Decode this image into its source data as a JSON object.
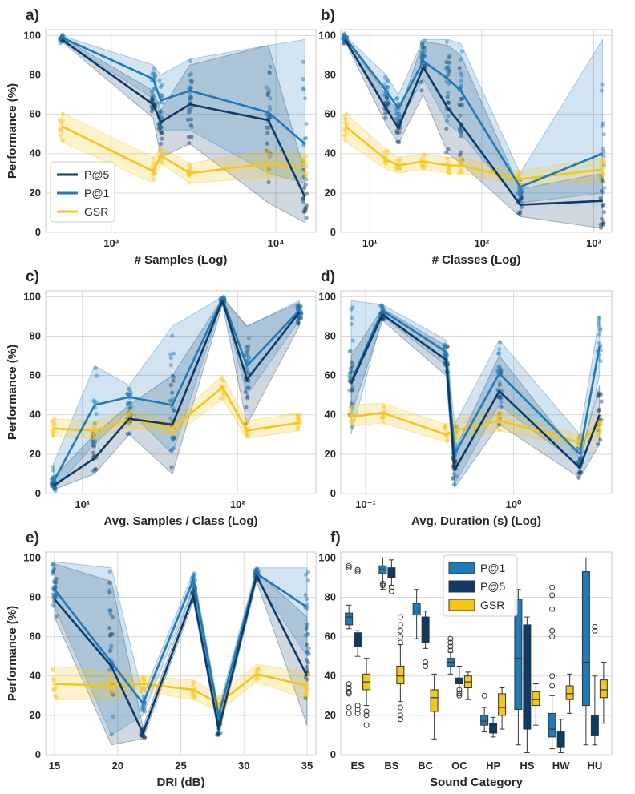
{
  "colors": {
    "p5": "#0d3b66",
    "p1": "#1f7ab8",
    "gsr": "#f5c518",
    "grid": "#d9d9d9",
    "frame": "#c8c8c8"
  },
  "legend": {
    "p5": "P@5",
    "p1": "P@1",
    "gsr": "GSR"
  },
  "chart_data": [
    {
      "id": "a",
      "label": "a)",
      "type": "line",
      "xscale": "log",
      "xlim": [
        400,
        17500
      ],
      "ylim": [
        0,
        103
      ],
      "xticks": [
        1000,
        10000
      ],
      "xtick_labels": [
        "10³",
        "10⁴"
      ],
      "yticks": [
        0,
        20,
        40,
        60,
        80,
        100
      ],
      "xlabel": "# Samples (Log)",
      "ylabel": "Performance (%)",
      "legend_pos": "lower-left",
      "x": [
        500,
        1800,
        2000,
        3000,
        9000,
        15000
      ],
      "series": [
        {
          "key": "p5",
          "values": [
            98,
            65,
            56,
            65,
            57,
            18
          ],
          "lower": [
            97,
            58,
            38,
            45,
            15,
            5
          ],
          "upper": [
            99,
            72,
            62,
            85,
            95,
            30
          ]
        },
        {
          "key": "p1",
          "values": [
            99,
            78,
            67,
            72,
            61,
            45
          ],
          "lower": [
            98,
            68,
            52,
            52,
            30,
            25
          ],
          "upper": [
            100,
            85,
            80,
            88,
            95,
            98
          ]
        },
        {
          "key": "gsr",
          "values": [
            54,
            31,
            39,
            30,
            35,
            33
          ],
          "lower": [
            46,
            25,
            35,
            25,
            28,
            27
          ],
          "upper": [
            61,
            38,
            43,
            35,
            42,
            40
          ]
        }
      ]
    },
    {
      "id": "b",
      "label": "b)",
      "type": "line",
      "xscale": "log",
      "xlim": [
        5.5,
        1450
      ],
      "ylim": [
        0,
        103
      ],
      "xticks": [
        10,
        100,
        1000
      ],
      "xtick_labels": [
        "10¹",
        "10²",
        "10³"
      ],
      "yticks": [
        0,
        20,
        40,
        60,
        80,
        100
      ],
      "xlabel": "# Classes (Log)",
      "ylabel": "",
      "x": [
        6,
        14,
        18,
        30,
        50,
        65,
        220,
        1200
      ],
      "series": [
        {
          "key": "p5",
          "values": [
            98,
            63,
            53,
            84,
            63,
            55,
            14,
            16
          ],
          "lower": [
            97,
            55,
            45,
            70,
            40,
            35,
            8,
            2
          ],
          "upper": [
            99,
            70,
            60,
            97,
            95,
            90,
            22,
            30
          ]
        },
        {
          "key": "p1",
          "values": [
            99,
            72,
            63,
            87,
            78,
            72,
            23,
            40
          ],
          "lower": [
            98,
            65,
            55,
            78,
            55,
            50,
            15,
            20
          ],
          "upper": [
            100,
            80,
            70,
            98,
            98,
            96,
            30,
            98
          ]
        },
        {
          "key": "gsr",
          "values": [
            54,
            37,
            34,
            36,
            34,
            34,
            27,
            32
          ],
          "lower": [
            46,
            32,
            30,
            32,
            30,
            30,
            24,
            26
          ],
          "upper": [
            61,
            42,
            38,
            40,
            38,
            38,
            31,
            38
          ]
        }
      ]
    },
    {
      "id": "c",
      "label": "c)",
      "type": "line",
      "xscale": "log",
      "xlim": [
        5.8,
        320
      ],
      "ylim": [
        0,
        103
      ],
      "xticks": [
        10,
        100
      ],
      "xtick_labels": [
        "10¹",
        "10²"
      ],
      "yticks": [
        0,
        20,
        40,
        60,
        80,
        100
      ],
      "xlabel": "Avg. Samples / Class (Log)",
      "ylabel": "Performance (%)",
      "x": [
        6.5,
        12,
        20,
        38,
        80,
        115,
        250
      ],
      "series": [
        {
          "key": "p5",
          "values": [
            4,
            18,
            38,
            35,
            98,
            58,
            92
          ],
          "lower": [
            2,
            10,
            30,
            10,
            96,
            35,
            85
          ],
          "upper": [
            8,
            30,
            45,
            60,
            99,
            85,
            97
          ]
        },
        {
          "key": "p1",
          "values": [
            6,
            45,
            49,
            45,
            99,
            65,
            93
          ],
          "lower": [
            2,
            25,
            42,
            20,
            98,
            50,
            88
          ],
          "upper": [
            15,
            65,
            55,
            85,
            100,
            85,
            98
          ]
        },
        {
          "key": "gsr",
          "values": [
            33,
            32,
            38,
            33,
            54,
            32,
            36
          ],
          "lower": [
            29,
            28,
            34,
            29,
            48,
            28,
            32
          ],
          "upper": [
            38,
            37,
            42,
            37,
            60,
            37,
            41
          ]
        }
      ]
    },
    {
      "id": "d",
      "label": "d)",
      "type": "line",
      "xscale": "log",
      "xlim": [
        0.068,
        4.6
      ],
      "ylim": [
        0,
        103
      ],
      "xticks": [
        0.1,
        1
      ],
      "xtick_labels": [
        "10⁻¹",
        "10⁰"
      ],
      "yticks": [
        0,
        20,
        40,
        60,
        80,
        100
      ],
      "xlabel": "Avg. Duration (s) (Log)",
      "ylabel": "",
      "x": [
        0.08,
        0.13,
        0.35,
        0.4,
        0.8,
        2.8,
        3.8
      ],
      "series": [
        {
          "key": "p5",
          "values": [
            56,
            91,
            68,
            12,
            52,
            13,
            40
          ],
          "lower": [
            40,
            88,
            60,
            3,
            35,
            8,
            25
          ],
          "upper": [
            70,
            94,
            75,
            22,
            70,
            18,
            55
          ]
        },
        {
          "key": "p1",
          "values": [
            57,
            93,
            72,
            20,
            61,
            20,
            75
          ],
          "lower": [
            30,
            90,
            65,
            5,
            45,
            14,
            60
          ],
          "upper": [
            98,
            96,
            78,
            35,
            78,
            30,
            90
          ]
        },
        {
          "key": "gsr",
          "values": [
            39,
            41,
            30,
            32,
            37,
            26,
            34
          ],
          "lower": [
            34,
            36,
            26,
            27,
            32,
            23,
            29
          ],
          "upper": [
            45,
            46,
            35,
            38,
            42,
            30,
            40
          ]
        }
      ]
    },
    {
      "id": "e",
      "label": "e)",
      "type": "line",
      "xscale": "linear",
      "xlim": [
        14.3,
        35.7
      ],
      "ylim": [
        0,
        103
      ],
      "xticks": [
        15,
        20,
        25,
        30,
        35
      ],
      "xtick_labels": [
        "15",
        "20",
        "25",
        "30",
        "35"
      ],
      "yticks": [
        0,
        20,
        40,
        60,
        80,
        100
      ],
      "xlabel": "DRI (dB)",
      "ylabel": "Performance (%)",
      "x": [
        15,
        19.5,
        22,
        26,
        28,
        31,
        35
      ],
      "series": [
        {
          "key": "p5",
          "values": [
            79,
            45,
            11,
            81,
            13,
            91,
            40
          ],
          "lower": [
            70,
            5,
            8,
            78,
            10,
            88,
            15
          ],
          "upper": [
            97,
            88,
            14,
            85,
            17,
            93,
            70
          ]
        },
        {
          "key": "p1",
          "values": [
            84,
            47,
            26,
            89,
            20,
            92,
            75
          ],
          "lower": [
            75,
            10,
            20,
            85,
            16,
            89,
            50
          ],
          "upper": [
            98,
            95,
            30,
            93,
            24,
            95,
            95
          ]
        },
        {
          "key": "gsr",
          "values": [
            36,
            35,
            36,
            33,
            26,
            41,
            35
          ],
          "lower": [
            28,
            28,
            32,
            28,
            22,
            37,
            28
          ],
          "upper": [
            45,
            42,
            40,
            38,
            30,
            46,
            42
          ]
        }
      ]
    },
    {
      "id": "f",
      "label": "f)",
      "type": "box",
      "ylim": [
        0,
        103
      ],
      "yticks": [
        0,
        20,
        40,
        60,
        80,
        100
      ],
      "xlabel": "Sound Category",
      "ylabel": "",
      "legend_pos": "top",
      "categories": [
        "ES",
        "BS",
        "BC",
        "OC",
        "HP",
        "HS",
        "HW",
        "HU"
      ],
      "series": [
        {
          "key": "p1",
          "name": "P@1",
          "boxes": [
            {
              "min": 64,
              "q1": 66,
              "median": 70,
              "q3": 72,
              "max": 76,
              "outliers": [
                21,
                24,
                31,
                32,
                34,
                36,
                95,
                96
              ]
            },
            {
              "min": 84,
              "q1": 92,
              "median": 94,
              "q3": 96,
              "max": 100,
              "outliers": [
                86,
                87
              ]
            },
            {
              "min": 59,
              "q1": 71,
              "median": 73,
              "q3": 77,
              "max": 84,
              "outliers": []
            },
            {
              "min": 41,
              "q1": 45,
              "median": 47,
              "q3": 49,
              "max": 52,
              "outliers": [
                53,
                55,
                57,
                59
              ]
            },
            {
              "min": 12,
              "q1": 15,
              "median": 17,
              "q3": 20,
              "max": 24,
              "outliers": [
                30
              ]
            },
            {
              "min": 5,
              "q1": 23,
              "median": 49,
              "q3": 79,
              "max": 84,
              "outliers": []
            },
            {
              "min": 3,
              "q1": 9,
              "median": 13,
              "q3": 21,
              "max": 30,
              "outliers": [
                35,
                40,
                60,
                63,
                74,
                81,
                85
              ]
            },
            {
              "min": 5,
              "q1": 25,
              "median": 47,
              "q3": 93,
              "max": 100,
              "outliers": []
            }
          ]
        },
        {
          "key": "p5",
          "name": "P@5",
          "boxes": [
            {
              "min": 50,
              "q1": 55,
              "median": 58,
              "q3": 62,
              "max": 63,
              "outliers": [
                21,
                23,
                25,
                93,
                94
              ]
            },
            {
              "min": 86,
              "q1": 90,
              "median": 92,
              "q3": 95,
              "max": 99,
              "outliers": [
                83,
                85
              ]
            },
            {
              "min": 54,
              "q1": 57,
              "median": 66,
              "q3": 70,
              "max": 73,
              "outliers": [
                45,
                47
              ]
            },
            {
              "min": 32,
              "q1": 36,
              "median": 37,
              "q3": 39,
              "max": 45,
              "outliers": [
                30,
                31,
                33
              ]
            },
            {
              "min": 9,
              "q1": 11,
              "median": 13,
              "q3": 16,
              "max": 19,
              "outliers": []
            },
            {
              "min": 1,
              "q1": 13,
              "median": 36,
              "q3": 66,
              "max": 70,
              "outliers": []
            },
            {
              "min": 1,
              "q1": 4,
              "median": 8,
              "q3": 12,
              "max": 18,
              "outliers": []
            },
            {
              "min": 5,
              "q1": 10,
              "median": 16,
              "q3": 20,
              "max": 40,
              "outliers": [
                63,
                65
              ]
            }
          ]
        },
        {
          "key": "gsr",
          "name": "GSR",
          "boxes": [
            {
              "min": 25,
              "q1": 33,
              "median": 37,
              "q3": 41,
              "max": 49,
              "outliers": [
                15,
                20,
                22
              ]
            },
            {
              "min": 27,
              "q1": 36,
              "median": 40,
              "q3": 45,
              "max": 56,
              "outliers": [
                18,
                20,
                24,
                57,
                60,
                63,
                66,
                70
              ]
            },
            {
              "min": 8,
              "q1": 22,
              "median": 29,
              "q3": 33,
              "max": 41,
              "outliers": []
            },
            {
              "min": 28,
              "q1": 34,
              "median": 37,
              "q3": 40,
              "max": 42,
              "outliers": []
            },
            {
              "min": 13,
              "q1": 20,
              "median": 24,
              "q3": 31,
              "max": 34,
              "outliers": []
            },
            {
              "min": 15,
              "q1": 25,
              "median": 28,
              "q3": 32,
              "max": 36,
              "outliers": []
            },
            {
              "min": 21,
              "q1": 28,
              "median": 31,
              "q3": 35,
              "max": 41,
              "outliers": []
            },
            {
              "min": 16,
              "q1": 29,
              "median": 33,
              "q3": 38,
              "max": 47,
              "outliers": []
            }
          ]
        }
      ]
    }
  ]
}
